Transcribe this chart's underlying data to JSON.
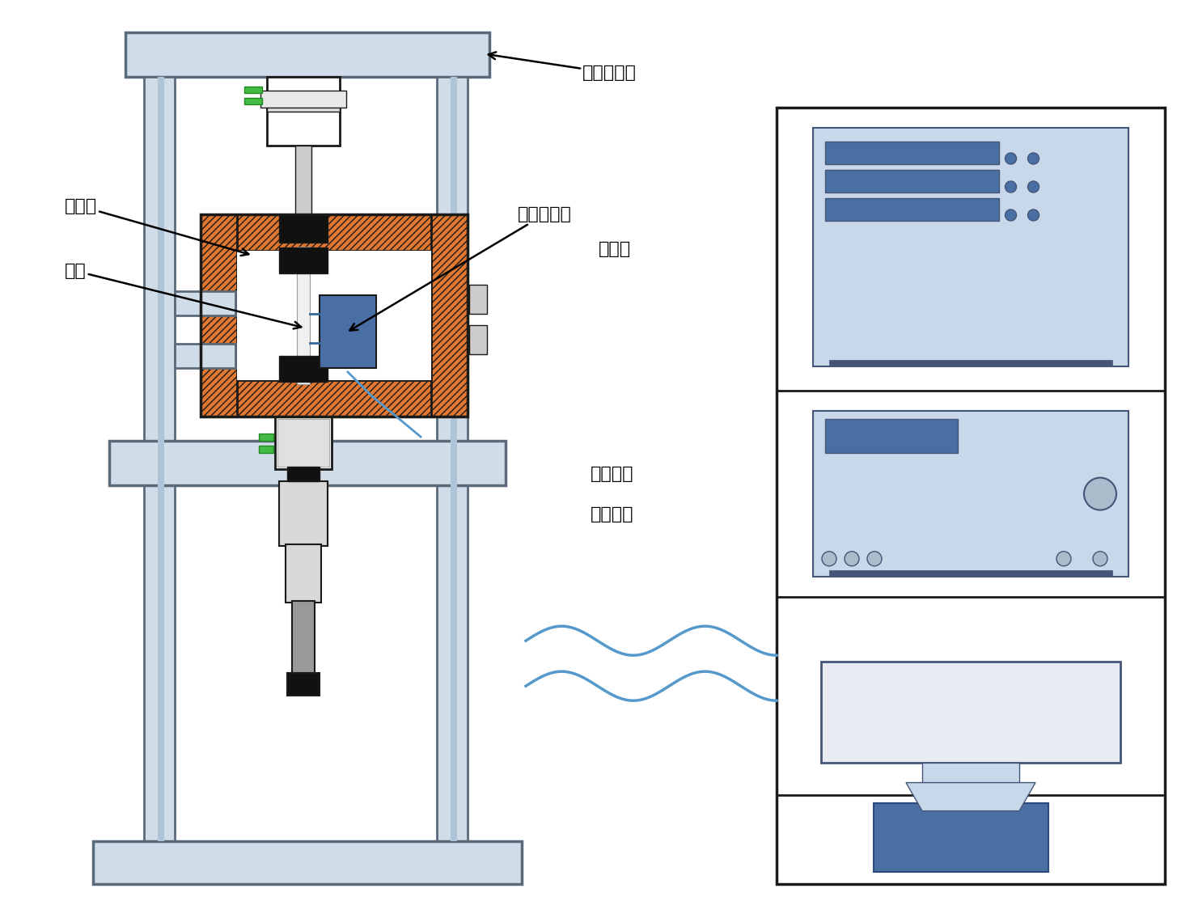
{
  "bg_color": "#ffffff",
  "line_color": "#1a1a1a",
  "steel_fill": "#d0dce8",
  "steel_edge": "#5a6a7a",
  "steel_inner": "#b0c4d8",
  "orange_fill": "#e07830",
  "blue_device": "#4a6fa5",
  "blue_light": "#8aaed4",
  "blue_bg": "#c8d8ea",
  "green_ind": "#44bb44",
  "gray_part": "#cccccc",
  "gray_dark": "#888888",
  "white": "#ffffff",
  "black": "#111111",
  "labels": {
    "fatigue_machine": "疲劳试验机",
    "heater": "加热炉",
    "specimen": "试样",
    "extensometer": "高温引伸计",
    "temp_controller": "温控仪",
    "fatigue_control": "疲劳试验\n控制系统"
  },
  "font_size": 16,
  "ann_font_size": 16
}
